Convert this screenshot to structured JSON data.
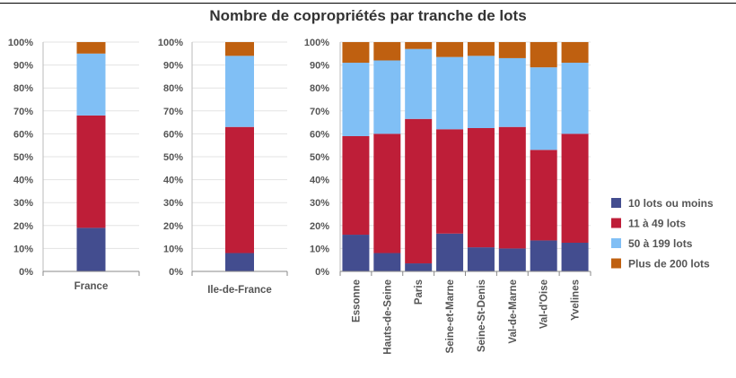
{
  "title": "Nombre de copropriétés par tranche de lots",
  "chart_data": {
    "type": "bar",
    "stacked": true,
    "title": "Nombre de copropriétés par tranche de lots",
    "ylim": [
      0,
      100
    ],
    "y_tick_labels": [
      "0%",
      "10%",
      "20%",
      "30%",
      "40%",
      "50%",
      "60%",
      "70%",
      "80%",
      "90%",
      "100%"
    ],
    "legend_position": "right",
    "series": [
      {
        "name": "10 lots ou moins",
        "color": "#434d8f"
      },
      {
        "name": "11 à 49 lots",
        "color": "#be1e38"
      },
      {
        "name": "50 à 199 lots",
        "color": "#80bff5"
      },
      {
        "name": "Plus de 200 lots",
        "color": "#bf6010"
      }
    ],
    "panels": [
      {
        "categories": [
          "France"
        ],
        "values": [
          [
            19
          ],
          [
            49
          ],
          [
            27
          ],
          [
            5
          ]
        ]
      },
      {
        "categories": [
          "Ile-de-France"
        ],
        "values": [
          [
            8
          ],
          [
            55
          ],
          [
            31
          ],
          [
            6
          ]
        ]
      },
      {
        "categories": [
          "Essonne",
          "Hauts-de-Seine",
          "Paris",
          "Seine-et-Marne",
          "Seine-St-Denis",
          "Val-de-Marne",
          "Val-d'Oise",
          "Yvelines"
        ],
        "values": [
          [
            16,
            8,
            3.5,
            16.5,
            10.5,
            10,
            13.5,
            12.5
          ],
          [
            43,
            52,
            63,
            45.5,
            52,
            53,
            39.5,
            47.5
          ],
          [
            32,
            32,
            30.5,
            31.5,
            31.5,
            30,
            36,
            31
          ],
          [
            9,
            8,
            3,
            6.5,
            6,
            7,
            11,
            9
          ]
        ]
      }
    ]
  }
}
